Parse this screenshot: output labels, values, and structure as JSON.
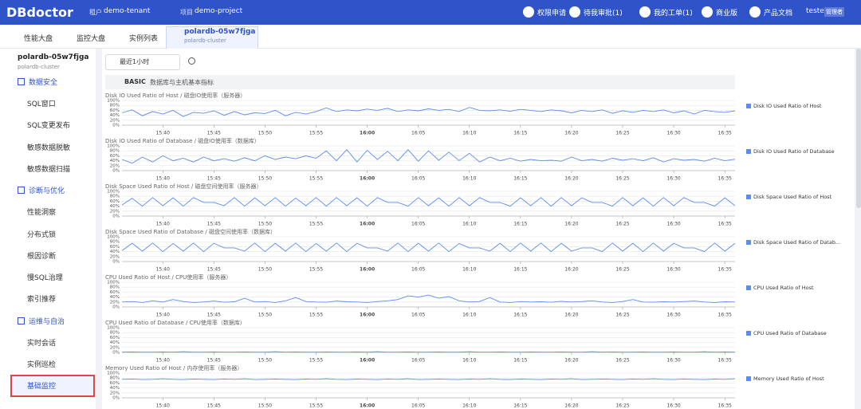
{
  "header": {
    "logo": "DBdoctor",
    "tenant_label": "租户",
    "tenant": "demo-tenant",
    "project_label": "项目",
    "project": "demo-project",
    "buttons": [
      "权限申请",
      "待我审批(1)",
      "我的工单(1)",
      "商业版",
      "产品文档"
    ],
    "user": "tester",
    "role": "管理者"
  },
  "tabs": [
    "性能大盘",
    "监控大盘",
    "实例列表"
  ],
  "active_tab": {
    "title": "polardb-05w7fjga",
    "subtitle": "polardb-cluster"
  },
  "sidebar": {
    "instance": "polardb-05w7fjga",
    "cluster": "polardb-cluster",
    "groups": [
      {
        "title": "数据安全",
        "items": [
          "SQL窗口",
          "SQL变更发布",
          "敏感数据脱敏",
          "敏感数据扫描"
        ]
      },
      {
        "title": "诊断与优化",
        "items": [
          "性能洞察",
          "分布式锁",
          "根因诊断",
          "慢SQL治理",
          "索引推荐"
        ]
      },
      {
        "title": "运维与自治",
        "items": [
          "实时会话",
          "实例巡检",
          "基础监控"
        ]
      }
    ]
  },
  "toolbar": {
    "time_range": "最近1小时"
  },
  "section": {
    "label": "BASIC",
    "description": "数据库与主机基本指标"
  },
  "chart_data": [
    {
      "type": "line",
      "title": "Disk IO Used Ratio of Host / 磁盘IO使用率（服务器）",
      "ylim": [
        0,
        100
      ],
      "yticks": [
        {
          "value": 100,
          "label": "100%"
        },
        {
          "value": 80,
          "label": "80%"
        },
        {
          "value": 60,
          "label": "60%"
        },
        {
          "value": 40,
          "label": "40%"
        },
        {
          "value": 20,
          "label": "20%"
        },
        {
          "value": 0,
          "label": "0%"
        }
      ],
      "categories": [
        null,
        null,
        null,
        null,
        "15:40",
        null,
        null,
        null,
        null,
        "15:45",
        null,
        null,
        null,
        null,
        "15:50",
        null,
        null,
        null,
        null,
        "15:55",
        null,
        null,
        null,
        null,
        "16:00",
        null,
        null,
        null,
        null,
        "16:05",
        null,
        null,
        null,
        null,
        "16:10",
        null,
        null,
        null,
        null,
        "16:15",
        null,
        null,
        null,
        null,
        "16:20",
        null,
        null,
        null,
        null,
        "16:25",
        null,
        null,
        null,
        null,
        "16:30",
        null,
        null,
        null,
        null,
        "16:35",
        null
      ],
      "series": [
        {
          "name": "Disk IO Used Ratio of Host",
          "color": "#5b8def",
          "values": [
            50,
            62,
            38,
            55,
            45,
            60,
            35,
            52,
            48,
            58,
            40,
            55,
            42,
            50,
            47,
            60,
            38,
            52,
            45,
            55,
            70,
            55,
            62,
            58,
            65,
            60,
            68,
            55,
            62,
            58,
            66,
            60,
            64,
            55,
            72,
            60,
            58,
            62,
            56,
            64,
            60,
            55,
            62,
            58,
            50,
            60,
            55,
            62,
            48,
            58,
            52,
            60,
            55,
            62,
            50,
            58,
            45,
            60,
            55,
            52,
            58
          ]
        }
      ]
    },
    {
      "type": "line",
      "title": "Disk IO Used Ratio of Database / 磁盘IO使用率（数据库）",
      "ylim": [
        0,
        100
      ],
      "yticks": [
        {
          "value": 100,
          "label": "100%"
        },
        {
          "value": 80,
          "label": "80%"
        },
        {
          "value": 60,
          "label": "60%"
        },
        {
          "value": 40,
          "label": "40%"
        },
        {
          "value": 20,
          "label": "20%"
        },
        {
          "value": 0,
          "label": "0%"
        }
      ],
      "categories": [
        null,
        null,
        null,
        null,
        "15:40",
        null,
        null,
        null,
        null,
        "15:45",
        null,
        null,
        null,
        null,
        "15:50",
        null,
        null,
        null,
        null,
        "15:55",
        null,
        null,
        null,
        null,
        "16:00",
        null,
        null,
        null,
        null,
        "16:05",
        null,
        null,
        null,
        null,
        "16:10",
        null,
        null,
        null,
        null,
        "16:15",
        null,
        null,
        null,
        null,
        "16:20",
        null,
        null,
        null,
        null,
        "16:25",
        null,
        null,
        null,
        null,
        "16:30",
        null,
        null,
        null,
        null,
        "16:35",
        null
      ],
      "series": [
        {
          "name": "Disk IO Used Ratio of Database",
          "color": "#5b8def",
          "values": [
            45,
            30,
            55,
            35,
            60,
            40,
            50,
            35,
            55,
            40,
            48,
            38,
            52,
            40,
            60,
            45,
            55,
            48,
            60,
            50,
            80,
            40,
            85,
            35,
            82,
            45,
            78,
            40,
            85,
            38,
            80,
            42,
            75,
            40,
            70,
            35,
            55,
            40,
            50,
            38,
            45,
            40,
            42,
            38,
            55,
            40,
            45,
            38,
            50,
            42,
            48,
            40,
            52,
            35,
            48,
            42,
            45,
            38,
            50,
            40,
            46
          ]
        }
      ]
    },
    {
      "type": "line",
      "title": "Disk Space Used Ratio of Host / 磁盘空间使用率（服务器）",
      "ylim": [
        0,
        100
      ],
      "yticks": [
        {
          "value": 100,
          "label": "100%"
        },
        {
          "value": 80,
          "label": "80%"
        },
        {
          "value": 60,
          "label": "60%"
        },
        {
          "value": 40,
          "label": "40%"
        },
        {
          "value": 20,
          "label": "20%"
        },
        {
          "value": 0,
          "label": "0%"
        }
      ],
      "categories": [
        null,
        null,
        null,
        null,
        "15:40",
        null,
        null,
        null,
        null,
        "15:45",
        null,
        null,
        null,
        null,
        "15:50",
        null,
        null,
        null,
        null,
        "15:55",
        null,
        null,
        null,
        null,
        "16:00",
        null,
        null,
        null,
        null,
        "16:05",
        null,
        null,
        null,
        null,
        "16:10",
        null,
        null,
        null,
        null,
        "16:15",
        null,
        null,
        null,
        null,
        "16:20",
        null,
        null,
        null,
        null,
        "16:25",
        null,
        null,
        null,
        null,
        "16:30",
        null,
        null,
        null,
        null,
        "16:35",
        null
      ],
      "series": [
        {
          "name": "Disk Space Used Ratio of Host",
          "color": "#5b8def",
          "values": [
            45,
            72,
            40,
            75,
            42,
            74,
            40,
            75,
            55,
            55,
            42,
            75,
            40,
            74,
            42,
            75,
            40,
            73,
            42,
            75,
            40,
            75,
            42,
            74,
            40,
            75,
            55,
            55,
            40,
            75,
            42,
            74,
            40,
            75,
            42,
            75,
            55,
            55,
            40,
            74,
            42,
            75,
            40,
            75,
            42,
            74,
            55,
            55,
            40,
            75,
            42,
            74,
            40,
            75,
            42,
            75,
            55,
            55,
            40,
            74,
            42
          ]
        }
      ]
    },
    {
      "type": "line",
      "title": "Disk Space Used Ratio of Database / 磁盘空间使用率（数据库）",
      "ylim": [
        0,
        100
      ],
      "yticks": [
        {
          "value": 100,
          "label": "100%"
        },
        {
          "value": 80,
          "label": "80%"
        },
        {
          "value": 60,
          "label": "60%"
        },
        {
          "value": 40,
          "label": "40%"
        },
        {
          "value": 20,
          "label": "20%"
        },
        {
          "value": 0,
          "label": "0%"
        }
      ],
      "categories": [
        null,
        null,
        null,
        null,
        "15:40",
        null,
        null,
        null,
        null,
        "15:45",
        null,
        null,
        null,
        null,
        "15:50",
        null,
        null,
        null,
        null,
        "15:55",
        null,
        null,
        null,
        null,
        "16:00",
        null,
        null,
        null,
        null,
        "16:05",
        null,
        null,
        null,
        null,
        "16:10",
        null,
        null,
        null,
        null,
        "16:15",
        null,
        null,
        null,
        null,
        "16:20",
        null,
        null,
        null,
        null,
        "16:25",
        null,
        null,
        null,
        null,
        "16:30",
        null,
        null,
        null,
        null,
        "16:35",
        null
      ],
      "series": [
        {
          "name": "Disk Space Used Ratio of Datab...",
          "color": "#5b8def",
          "values": [
            44,
            74,
            42,
            75,
            40,
            73,
            42,
            75,
            40,
            74,
            55,
            55,
            42,
            75,
            40,
            74,
            42,
            75,
            40,
            73,
            42,
            75,
            40,
            74,
            55,
            55,
            42,
            75,
            40,
            74,
            42,
            75,
            40,
            73,
            55,
            55,
            42,
            74,
            40,
            75,
            42,
            75,
            40,
            74,
            42,
            55,
            55,
            40,
            75,
            42,
            74,
            40,
            75,
            42,
            74,
            55,
            55,
            40,
            75,
            42,
            74
          ]
        }
      ]
    },
    {
      "type": "line",
      "title": "CPU Used Ratio of Host / CPU使用率（服务器）",
      "ylim": [
        0,
        100
      ],
      "yticks": [
        {
          "value": 100,
          "label": "100%"
        },
        {
          "value": 80,
          "label": "80%"
        },
        {
          "value": 60,
          "label": "60%"
        },
        {
          "value": 40,
          "label": "40%"
        },
        {
          "value": 20,
          "label": "20%"
        },
        {
          "value": 0,
          "label": "0%"
        }
      ],
      "categories": [
        null,
        null,
        null,
        null,
        "15:40",
        null,
        null,
        null,
        null,
        "15:45",
        null,
        null,
        null,
        null,
        "15:50",
        null,
        null,
        null,
        null,
        "15:55",
        null,
        null,
        null,
        null,
        "16:00",
        null,
        null,
        null,
        null,
        "16:05",
        null,
        null,
        null,
        null,
        "16:10",
        null,
        null,
        null,
        null,
        "16:15",
        null,
        null,
        null,
        null,
        "16:20",
        null,
        null,
        null,
        null,
        "16:25",
        null,
        null,
        null,
        null,
        "16:30",
        null,
        null,
        null,
        null,
        "16:35",
        null
      ],
      "series": [
        {
          "name": "CPU Used Ratio of Host",
          "color": "#5b8def",
          "values": [
            20,
            22,
            18,
            25,
            20,
            30,
            22,
            18,
            20,
            24,
            19,
            21,
            35,
            20,
            22,
            18,
            25,
            38,
            22,
            20,
            19,
            24,
            21,
            20,
            18,
            22,
            25,
            30,
            45,
            40,
            48,
            35,
            42,
            25,
            20,
            22,
            38,
            20,
            18,
            22,
            20,
            21,
            19,
            23,
            20,
            22,
            25,
            20,
            18,
            22,
            30,
            20,
            19,
            21,
            20,
            22,
            24,
            20,
            18,
            21,
            20
          ]
        }
      ]
    },
    {
      "type": "line",
      "title": "CPU Used Ratio of Database / CPU使用率（数据库）",
      "ylim": [
        0,
        100
      ],
      "yticks": [
        {
          "value": 100,
          "label": "100%"
        },
        {
          "value": 80,
          "label": "80%"
        },
        {
          "value": 60,
          "label": "60%"
        },
        {
          "value": 40,
          "label": "40%"
        },
        {
          "value": 20,
          "label": "20%"
        },
        {
          "value": 0,
          "label": "0%"
        }
      ],
      "categories": [
        null,
        null,
        null,
        null,
        "15:40",
        null,
        null,
        null,
        null,
        "15:45",
        null,
        null,
        null,
        null,
        "15:50",
        null,
        null,
        null,
        null,
        "15:55",
        null,
        null,
        null,
        null,
        "16:00",
        null,
        null,
        null,
        null,
        "16:05",
        null,
        null,
        null,
        null,
        "16:10",
        null,
        null,
        null,
        null,
        "16:15",
        null,
        null,
        null,
        null,
        "16:20",
        null,
        null,
        null,
        null,
        "16:25",
        null,
        null,
        null,
        null,
        "16:30",
        null,
        null,
        null,
        null,
        "16:35",
        null
      ],
      "series": [
        {
          "name": "CPU Used Ratio of Database",
          "color": "#5b8def",
          "values": [
            1,
            2,
            1,
            1,
            2,
            1,
            3,
            1,
            1,
            2,
            1,
            1,
            2,
            1,
            1,
            3,
            1,
            2,
            1,
            1,
            2,
            1,
            1,
            2,
            1,
            3,
            1,
            1,
            2,
            1,
            1,
            2,
            1,
            1,
            3,
            1,
            1,
            2,
            1,
            1,
            2,
            1,
            1,
            2,
            1,
            1,
            3,
            1,
            2,
            1,
            1,
            2,
            1,
            1,
            2,
            1,
            1,
            3,
            1,
            2,
            1
          ]
        }
      ]
    },
    {
      "type": "line",
      "title": "Memory Used Ratio of Host / 内存使用率（服务器）",
      "ylim": [
        0,
        100
      ],
      "yticks": [
        {
          "value": 100,
          "label": "100%"
        },
        {
          "value": 80,
          "label": "80%"
        },
        {
          "value": 60,
          "label": "60%"
        },
        {
          "value": 40,
          "label": "40%"
        },
        {
          "value": 20,
          "label": "20%"
        },
        {
          "value": 0,
          "label": "0%"
        }
      ],
      "categories": [
        null,
        null,
        null,
        null,
        "15:40",
        null,
        null,
        null,
        null,
        "15:45",
        null,
        null,
        null,
        null,
        "15:50",
        null,
        null,
        null,
        null,
        "15:55",
        null,
        null,
        null,
        null,
        "16:00",
        null,
        null,
        null,
        null,
        "16:05",
        null,
        null,
        null,
        null,
        "16:10",
        null,
        null,
        null,
        null,
        "16:15",
        null,
        null,
        null,
        null,
        "16:20",
        null,
        null,
        null,
        null,
        "16:25",
        null,
        null,
        null,
        null,
        "16:30",
        null,
        null,
        null,
        null,
        "16:35",
        null
      ],
      "series": [
        {
          "name": "Memory Used Ratio of Host",
          "color": "#5b8def",
          "values": [
            75,
            76,
            74,
            75,
            77,
            75,
            74,
            76,
            75,
            74,
            76,
            75,
            77,
            74,
            75,
            76,
            75,
            74,
            76,
            75,
            77,
            75,
            74,
            76,
            75,
            74,
            76,
            75,
            77,
            74,
            75,
            76,
            75,
            74,
            76,
            75,
            77,
            75,
            74,
            76,
            75,
            74,
            76,
            75,
            77,
            74,
            75,
            76,
            75,
            74,
            76,
            75,
            77,
            75,
            74,
            76,
            75,
            74,
            76,
            75,
            77
          ]
        }
      ]
    }
  ]
}
